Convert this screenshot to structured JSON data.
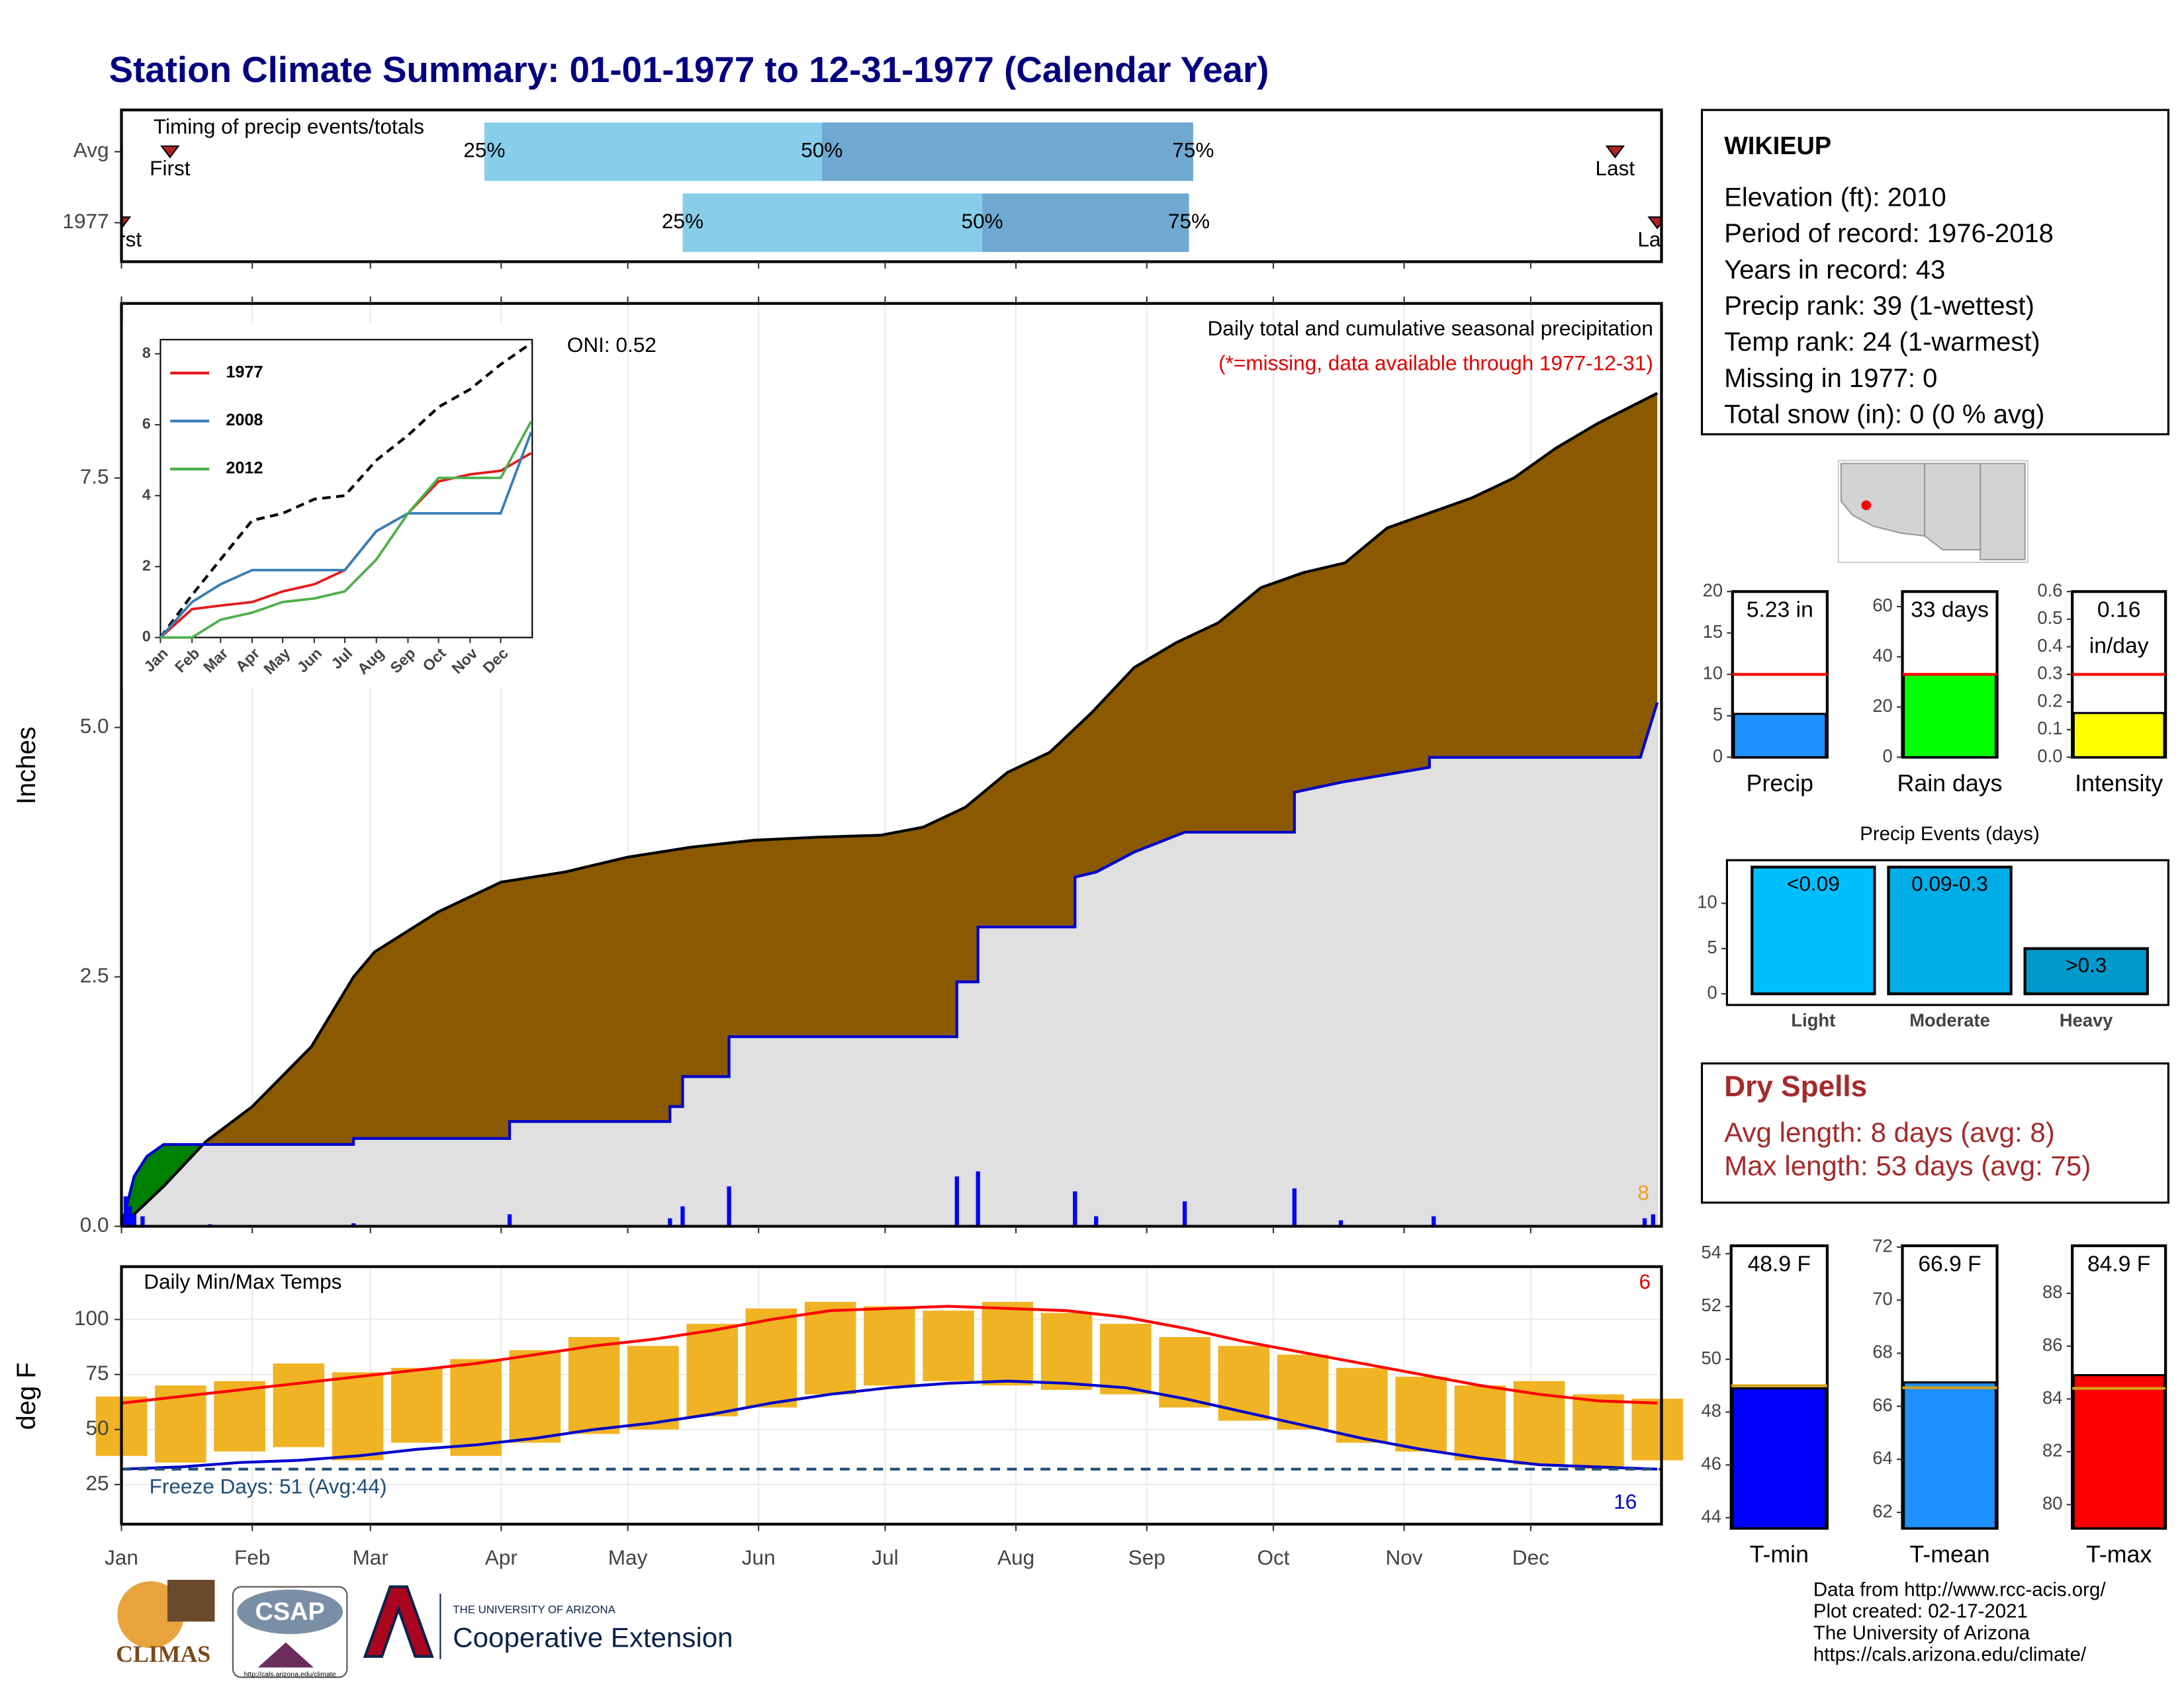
{
  "title": "Station Climate Summary: 01-01-1977 to 12-31-1977 (Calendar Year)",
  "station": {
    "name": "WIKIEUP",
    "lines": [
      "Elevation (ft): 2010",
      "Period of record: 1976-2018",
      "Years in record: 43",
      "Precip rank: 39 (1-wettest)",
      "Temp rank: 24 (1-warmest)",
      "Missing in 1977: 0",
      "Total snow (in): 0 (0 % avg)"
    ]
  },
  "dry_spells": {
    "title": "Dry Spells",
    "lines": [
      "Avg length: 8 days (avg: 8)",
      "Max length: 53 days (avg: 75)"
    ]
  },
  "footer": {
    "credits": [
      "Data from http://www.rcc-acis.org/",
      "Plot created: 02-17-2021",
      "The University of Arizona",
      "https://cals.arizona.edu/climate/"
    ],
    "logos": [
      "CLIMAS",
      "CSAP",
      "http://cals.arizona.edu/climate",
      "THE UNIVERSITY OF ARIZONA",
      "Cooperative Extension"
    ]
  },
  "chart_data": [
    {
      "type": "timing",
      "title": "Timing of precip events/totals",
      "rows": [
        "Avg",
        "1977"
      ],
      "first": [
        11.5,
        0
      ],
      "p25": [
        86,
        133
      ],
      "p50": [
        166,
        204
      ],
      "p75": [
        254,
        253
      ],
      "last": [
        354,
        364
      ],
      "labels": {
        "first": "First",
        "last": "Last",
        "p25": "25%",
        "p50": "50%",
        "p75": "75%"
      },
      "colors": [
        "#87ceeb",
        "#6fa8d0"
      ],
      "xlim": [
        0,
        365
      ],
      "xticks": [
        0,
        31,
        59,
        90,
        120,
        151,
        181,
        212,
        243,
        273,
        304,
        334
      ]
    },
    {
      "type": "cumulative",
      "ylabel": "Inches",
      "title": "Daily total and cumulative seasonal precipitation",
      "subtitle": "(*=missing, data available through 1977-12-31)",
      "annotation": "ONI: 0.52",
      "count": 8,
      "xlim": [
        0,
        365
      ],
      "xticks": [
        0,
        31,
        59,
        90,
        120,
        151,
        181,
        212,
        243,
        273,
        304,
        334
      ],
      "grid": true,
      "ylim": [
        0,
        9.25
      ],
      "yticks": [
        {
          "value": 0,
          "label": "0.0"
        },
        2.5,
        {
          "value": 5,
          "label": "5.0"
        },
        7.5
      ],
      "avg": {
        "color": "#000000",
        "x": [
          0,
          10,
          20,
          31,
          45,
          55,
          60,
          75,
          90,
          105,
          120,
          135,
          150,
          165,
          180,
          190,
          200,
          210,
          220,
          230,
          240,
          250,
          260,
          270,
          280,
          290,
          300,
          310,
          320,
          330,
          340,
          350,
          364
        ],
        "values": [
          0,
          0.4,
          0.85,
          1.2,
          1.8,
          2.5,
          2.75,
          3.15,
          3.45,
          3.55,
          3.7,
          3.8,
          3.87,
          3.9,
          3.92,
          4.0,
          4.2,
          4.55,
          4.75,
          5.15,
          5.6,
          5.85,
          6.05,
          6.4,
          6.55,
          6.65,
          7.0,
          7.15,
          7.3,
          7.5,
          7.8,
          8.05,
          8.35
        ]
      },
      "year": {
        "color": "#0000cc",
        "x": [
          0,
          3,
          6,
          10,
          55,
          55,
          92,
          92,
          130,
          130,
          133,
          133,
          144,
          144,
          198,
          198,
          203,
          203,
          226,
          226,
          231,
          240,
          252,
          278,
          278,
          289,
          310,
          310,
          360,
          364
        ],
        "values": [
          0,
          0.5,
          0.7,
          0.82,
          0.82,
          0.88,
          0.88,
          1.05,
          1.05,
          1.2,
          1.2,
          1.5,
          1.5,
          1.9,
          1.9,
          2.45,
          2.45,
          3.0,
          3.0,
          3.5,
          3.55,
          3.75,
          3.95,
          3.95,
          4.35,
          4.45,
          4.6,
          4.7,
          4.7,
          5.25
        ]
      },
      "daily": {
        "color": "#0000ff",
        "x": [
          1,
          2,
          3,
          5,
          21,
          55,
          92,
          130,
          133,
          144,
          198,
          203,
          226,
          231,
          252,
          278,
          289,
          311,
          361,
          363
        ],
        "values": [
          0.3,
          0.2,
          0.12,
          0.1,
          0.02,
          0.03,
          0.12,
          0.08,
          0.2,
          0.4,
          0.5,
          0.55,
          0.35,
          0.1,
          0.25,
          0.38,
          0.06,
          0.1,
          0.08,
          0.12
        ]
      },
      "fill_above": "#8b5a00",
      "fill_below": "#008000",
      "fill_base": "#e0e0e0"
    },
    {
      "type": "line",
      "xlim": [
        0,
        365
      ],
      "ylim": [
        0,
        8.4
      ],
      "yticks": [
        0,
        2,
        4,
        6,
        8
      ],
      "xticks": [
        {
          "value": 0,
          "label": "Jan"
        },
        {
          "value": 31,
          "label": "Feb"
        },
        {
          "value": 59,
          "label": "Mar"
        },
        {
          "value": 90,
          "label": "Apr"
        },
        {
          "value": 120,
          "label": "May"
        },
        {
          "value": 151,
          "label": "Jun"
        },
        {
          "value": 181,
          "label": "Jul"
        },
        {
          "value": 212,
          "label": "Aug"
        },
        {
          "value": 243,
          "label": "Sep"
        },
        {
          "value": 273,
          "label": "Oct"
        },
        {
          "value": 304,
          "label": "Nov"
        },
        {
          "value": 334,
          "label": "Dec"
        }
      ],
      "x": [
        0,
        31,
        59,
        90,
        120,
        151,
        181,
        212,
        243,
        273,
        304,
        334,
        364
      ],
      "avg": [
        0,
        1.2,
        2.2,
        3.3,
        3.5,
        3.9,
        4.0,
        5.0,
        5.7,
        6.5,
        7.0,
        7.7,
        8.3
      ],
      "series": [
        {
          "name": "1977",
          "color": "#e41a1c",
          "values": [
            0,
            0.8,
            0.9,
            1.0,
            1.3,
            1.5,
            1.9,
            3.0,
            3.5,
            4.4,
            4.6,
            4.7,
            5.2
          ]
        },
        {
          "name": "2008",
          "color": "#377eb8",
          "values": [
            0,
            1.0,
            1.5,
            1.9,
            1.9,
            1.9,
            1.9,
            3.0,
            3.5,
            3.5,
            3.5,
            3.5,
            5.8
          ]
        },
        {
          "name": "2012",
          "color": "#4daf4a",
          "values": [
            0,
            0,
            0.5,
            0.7,
            1.0,
            1.1,
            1.3,
            2.2,
            3.5,
            4.5,
            4.5,
            4.5,
            6.1
          ]
        }
      ]
    },
    {
      "type": "temps",
      "title": "Daily Min/Max Temps",
      "ylabel": "deg F",
      "ylim": [
        7,
        124
      ],
      "yticks": [
        25,
        50,
        75,
        100
      ],
      "grid": true,
      "xlim": [
        0,
        365
      ],
      "xticks": [
        {
          "value": 0,
          "label": "Jan"
        },
        {
          "value": 31,
          "label": "Feb"
        },
        {
          "value": 59,
          "label": "Mar"
        },
        {
          "value": 90,
          "label": "Apr"
        },
        {
          "value": 120,
          "label": "May"
        },
        {
          "value": 151,
          "label": "Jun"
        },
        {
          "value": 181,
          "label": "Jul"
        },
        {
          "value": 212,
          "label": "Aug"
        },
        {
          "value": 243,
          "label": "Sep"
        },
        {
          "value": 273,
          "label": "Oct"
        },
        {
          "value": 304,
          "label": "Nov"
        },
        {
          "value": 334,
          "label": "Dec"
        }
      ],
      "x": [
        0,
        14,
        28,
        42,
        56,
        70,
        84,
        98,
        112,
        126,
        140,
        154,
        168,
        182,
        196,
        210,
        224,
        238,
        252,
        266,
        280,
        294,
        308,
        322,
        336,
        350,
        364
      ],
      "avg_max": [
        62,
        65,
        68,
        71,
        74,
        77,
        80,
        84,
        88,
        91,
        95,
        100,
        104,
        105,
        106,
        105,
        104,
        101,
        96,
        90,
        85,
        80,
        75,
        70,
        66,
        63,
        62
      ],
      "avg_min": [
        32,
        33,
        35,
        36,
        38,
        41,
        43,
        46,
        50,
        53,
        57,
        62,
        66,
        69,
        71,
        72,
        71,
        69,
        64,
        58,
        52,
        46,
        41,
        37,
        34,
        33,
        32
      ],
      "obs_max": [
        65,
        70,
        72,
        80,
        76,
        78,
        82,
        86,
        92,
        88,
        98,
        105,
        108,
        106,
        104,
        108,
        103,
        98,
        92,
        88,
        84,
        78,
        74,
        70,
        72,
        66,
        64
      ],
      "obs_min": [
        38,
        35,
        40,
        42,
        36,
        44,
        38,
        44,
        48,
        50,
        56,
        60,
        66,
        70,
        72,
        70,
        68,
        66,
        60,
        54,
        50,
        44,
        40,
        36,
        34,
        32,
        36
      ],
      "colors": {
        "obs": "#f0b323",
        "max": "#ff0000",
        "min": "#0000cc",
        "freeze": "#1f4e79"
      },
      "freeze": 32,
      "freeze_label": "Freeze Days: 51 (Avg:44)",
      "record_high_count": 6,
      "record_low_count": 16
    },
    {
      "type": "gauge",
      "category": "Precip",
      "value": 5.23,
      "value_labels": [
        "5.23 in"
      ],
      "avg": 10,
      "color": "#1e90ff",
      "avg_color": "#ff0000",
      "ylim": [
        0,
        20
      ],
      "yticks": [
        0,
        5,
        10,
        15,
        20
      ]
    },
    {
      "type": "gauge",
      "category": "Rain days",
      "value": 33,
      "value_labels": [
        "33 days"
      ],
      "avg": 33,
      "color": "#00ff00",
      "avg_color": "#ff0000",
      "ylim": [
        0,
        66
      ],
      "yticks": [
        0,
        20,
        40,
        60
      ]
    },
    {
      "type": "gauge",
      "category": "Intensity",
      "value": 0.16,
      "value_labels": [
        "0.16",
        "in/day"
      ],
      "avg": 0.3,
      "color": "#ffff00",
      "avg_color": "#ff0000",
      "ylim": [
        0,
        0.6
      ],
      "yticks": [
        {
          "value": 0,
          "label": "0.0"
        },
        0.1,
        0.2,
        0.3,
        0.4,
        0.5,
        0.6
      ]
    },
    {
      "type": "bar",
      "title": "Precip Events (days)",
      "categories": [
        "Light",
        "Moderate",
        "Heavy"
      ],
      "bins": [
        "<0.09",
        "0.09-0.3",
        ">0.3"
      ],
      "values": [
        14,
        14,
        5
      ],
      "colors": [
        "#00bfff",
        "#00aee8",
        "#0099cc"
      ],
      "ylim": [
        0,
        14.3
      ],
      "yticks": [
        0,
        5,
        10
      ]
    },
    {
      "type": "gauge",
      "category": "T-min",
      "value": 48.9,
      "value_labels": [
        "48.9 F"
      ],
      "avg": 49,
      "color": "#0000ff",
      "avg_color": "#d4a017",
      "ylim": [
        43.6,
        54.3
      ],
      "yticks": [
        44,
        46,
        48,
        50,
        52,
        54
      ]
    },
    {
      "type": "gauge",
      "category": "T-mean",
      "value": 66.9,
      "value_labels": [
        "66.9 F"
      ],
      "avg": 66.7,
      "color": "#1e90ff",
      "avg_color": "#d4a017",
      "ylim": [
        61.4,
        72.05
      ],
      "yticks": [
        62,
        64,
        66,
        68,
        70,
        72
      ]
    },
    {
      "type": "gauge",
      "category": "T-max",
      "value": 84.9,
      "value_labels": [
        "84.9 F"
      ],
      "avg": 84.4,
      "color": "#ff0000",
      "avg_color": "#d4a017",
      "ylim": [
        79.1,
        89.8
      ],
      "yticks": [
        80,
        82,
        84,
        86,
        88
      ]
    }
  ]
}
